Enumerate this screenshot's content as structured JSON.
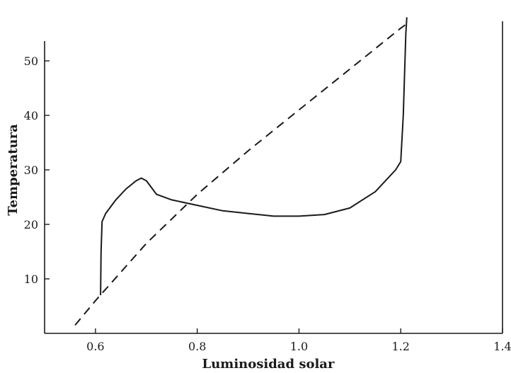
{
  "chart_data": {
    "type": "line",
    "title": "",
    "xlabel": "Luminosidad solar",
    "ylabel": "Temperatura",
    "xlim": [
      0.5,
      1.4
    ],
    "ylim": [
      0,
      60
    ],
    "x_ticks": [
      0.6,
      0.8,
      1.0,
      1.2,
      1.4
    ],
    "x_tick_labels": [
      "0.6",
      "0.8",
      "1.0",
      "1.2",
      "1.4"
    ],
    "y_ticks": [
      10,
      20,
      30,
      40,
      50
    ],
    "y_tick_labels": [
      "10",
      "20",
      "30",
      "40",
      "50"
    ],
    "grid": false,
    "legend": "none",
    "series": [
      {
        "style": "dashed",
        "x": [
          0.56,
          0.6,
          0.7,
          0.8,
          0.9,
          1.0,
          1.1,
          1.2,
          1.215
        ],
        "y": [
          1.5,
          6,
          16.5,
          25.5,
          33.5,
          41,
          48.5,
          56,
          57
        ]
      },
      {
        "style": "solid",
        "x": [
          0.61,
          0.611,
          0.613,
          0.62,
          0.64,
          0.66,
          0.68,
          0.69,
          0.7,
          0.72,
          0.75,
          0.8,
          0.85,
          0.9,
          0.95,
          1.0,
          1.05,
          1.1,
          1.15,
          1.19,
          1.2,
          1.205,
          1.21,
          1.212
        ],
        "y": [
          7,
          15,
          20.5,
          22,
          24.5,
          26.5,
          28,
          28.5,
          28,
          25.5,
          24.5,
          23.5,
          22.5,
          22,
          21.5,
          21.5,
          21.8,
          23,
          26,
          30,
          31.5,
          40,
          55,
          58
        ]
      }
    ]
  }
}
